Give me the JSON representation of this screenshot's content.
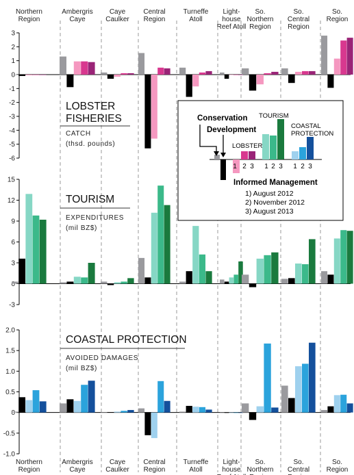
{
  "chart_data": {
    "type": "bar",
    "regions": [
      "Northern Region",
      "Ambergris Caye",
      "Caye Caulker",
      "Central Region",
      "Turneffe Atoll",
      "Light-house Reef Atoll",
      "So. Northern Region",
      "So. Central Region",
      "So. Region"
    ],
    "region_labels": [
      [
        "Northern",
        "Region"
      ],
      [
        "Ambergris",
        "Caye"
      ],
      [
        "Caye",
        "Caulker"
      ],
      [
        "Central",
        "Region"
      ],
      [
        "Turneffe",
        "Atoll"
      ],
      [
        "Light-",
        "house",
        "Reef Atoll"
      ],
      [
        "So.",
        "Northern",
        "Region"
      ],
      [
        "So.",
        "Central",
        "Region"
      ],
      [
        "So.",
        "Region"
      ]
    ],
    "colors": {
      "conservation": "#9a9a9e",
      "development": "#000000",
      "lobster": [
        "#f598c0",
        "#d8388f",
        "#9a2477"
      ],
      "tourism": [
        "#86d7c5",
        "#3bb98a",
        "#1a7a3e"
      ],
      "coastal": [
        "#9fd1ee",
        "#2ba3dc",
        "#14509c"
      ]
    },
    "panels": [
      {
        "key": "lobster",
        "title": [
          "LOBSTER",
          "FISHERIES"
        ],
        "subtitle": [
          "CATCH",
          "(thsd. pounds)"
        ],
        "ylim": [
          -6,
          3
        ],
        "yticks": [
          "3",
          "2",
          "1",
          "0",
          "-1",
          "-2",
          "-3",
          "-4",
          "-5",
          "-6"
        ],
        "ytick_values": [
          3,
          2,
          1,
          0,
          -1,
          -2,
          -3,
          -4,
          -5,
          -6
        ],
        "conservation": [
          0.0,
          1.3,
          0.15,
          1.55,
          0.5,
          0.15,
          0.45,
          0.45,
          2.8
        ],
        "development": [
          -0.1,
          -0.9,
          -0.3,
          -5.3,
          -1.6,
          -0.3,
          -1.15,
          -0.6,
          -0.95
        ],
        "m1": [
          -0.05,
          0.95,
          -0.15,
          -4.6,
          -0.85,
          0.0,
          -0.7,
          0.2,
          1.15
        ],
        "m2": [
          0.0,
          0.95,
          0.1,
          0.5,
          0.15,
          0.0,
          0.1,
          0.25,
          2.45
        ],
        "m3": [
          0.0,
          0.9,
          0.1,
          0.45,
          0.25,
          0.0,
          0.2,
          0.25,
          2.65
        ]
      },
      {
        "key": "tourism",
        "title": [
          "TOURISM"
        ],
        "subtitle": [
          "EXPENDITURES",
          "(mil BZ$)"
        ],
        "ylim": [
          -3,
          15
        ],
        "yticks": [
          "15",
          "12",
          "9",
          "6",
          "3",
          "0",
          "-3"
        ],
        "ytick_values": [
          15,
          12,
          9,
          6,
          3,
          0,
          -3
        ],
        "conservation": [
          0.3,
          0.2,
          0.3,
          3.7,
          0.3,
          0.6,
          1.3,
          0.7,
          1.8
        ],
        "development": [
          3.6,
          0.3,
          -0.2,
          0.9,
          1.8,
          0.3,
          -0.5,
          0.8,
          1.3
        ],
        "m1": [
          12.9,
          1.0,
          0.2,
          10.2,
          8.3,
          0.9,
          3.6,
          2.9,
          6.5
        ],
        "m2": [
          9.8,
          0.9,
          0.3,
          14.1,
          4.2,
          1.3,
          4.1,
          2.8,
          7.7
        ],
        "m3": [
          9.2,
          3.0,
          0.8,
          11.3,
          1.8,
          3.2,
          4.5,
          6.4,
          7.6
        ]
      },
      {
        "key": "coastal",
        "title": [
          "COASTAL PROTECTION"
        ],
        "subtitle": [
          "AVOIDED DAMAGES",
          "(mil BZ$)"
        ],
        "ylim": [
          -1.0,
          2.0
        ],
        "yticks": [
          "2.0",
          "1.5",
          "1.0",
          "0.5",
          "0",
          "-0.5",
          "-1.0"
        ],
        "ytick_values": [
          2.0,
          1.5,
          1.0,
          0.5,
          0,
          -0.5,
          -1.0
        ],
        "conservation": [
          0.02,
          0.22,
          0.01,
          0.1,
          0.02,
          0.0,
          0.22,
          0.65,
          0.06
        ],
        "development": [
          0.37,
          0.32,
          0.01,
          -0.55,
          0.16,
          0.0,
          -0.18,
          0.35,
          0.15
        ],
        "m1": [
          0.3,
          0.28,
          0.02,
          -0.62,
          0.14,
          0.0,
          0.15,
          1.12,
          0.42
        ],
        "m2": [
          0.54,
          0.67,
          0.04,
          0.76,
          0.13,
          0.0,
          1.67,
          1.18,
          0.43
        ],
        "m3": [
          0.27,
          0.77,
          0.06,
          0.28,
          0.07,
          0.0,
          0.12,
          1.69,
          0.22
        ]
      }
    ],
    "legend": {
      "conservation": "Conservation",
      "development": "Development",
      "lobster": "LOBSTER",
      "tourism": "TOURISM",
      "coastal": [
        "COASTAL",
        "PROTECTION"
      ],
      "numbers": [
        "1",
        "2",
        "3"
      ],
      "title": "Informed Management",
      "items": [
        "1) August 2012",
        "2) November 2012",
        "3) August 2013"
      ]
    }
  }
}
